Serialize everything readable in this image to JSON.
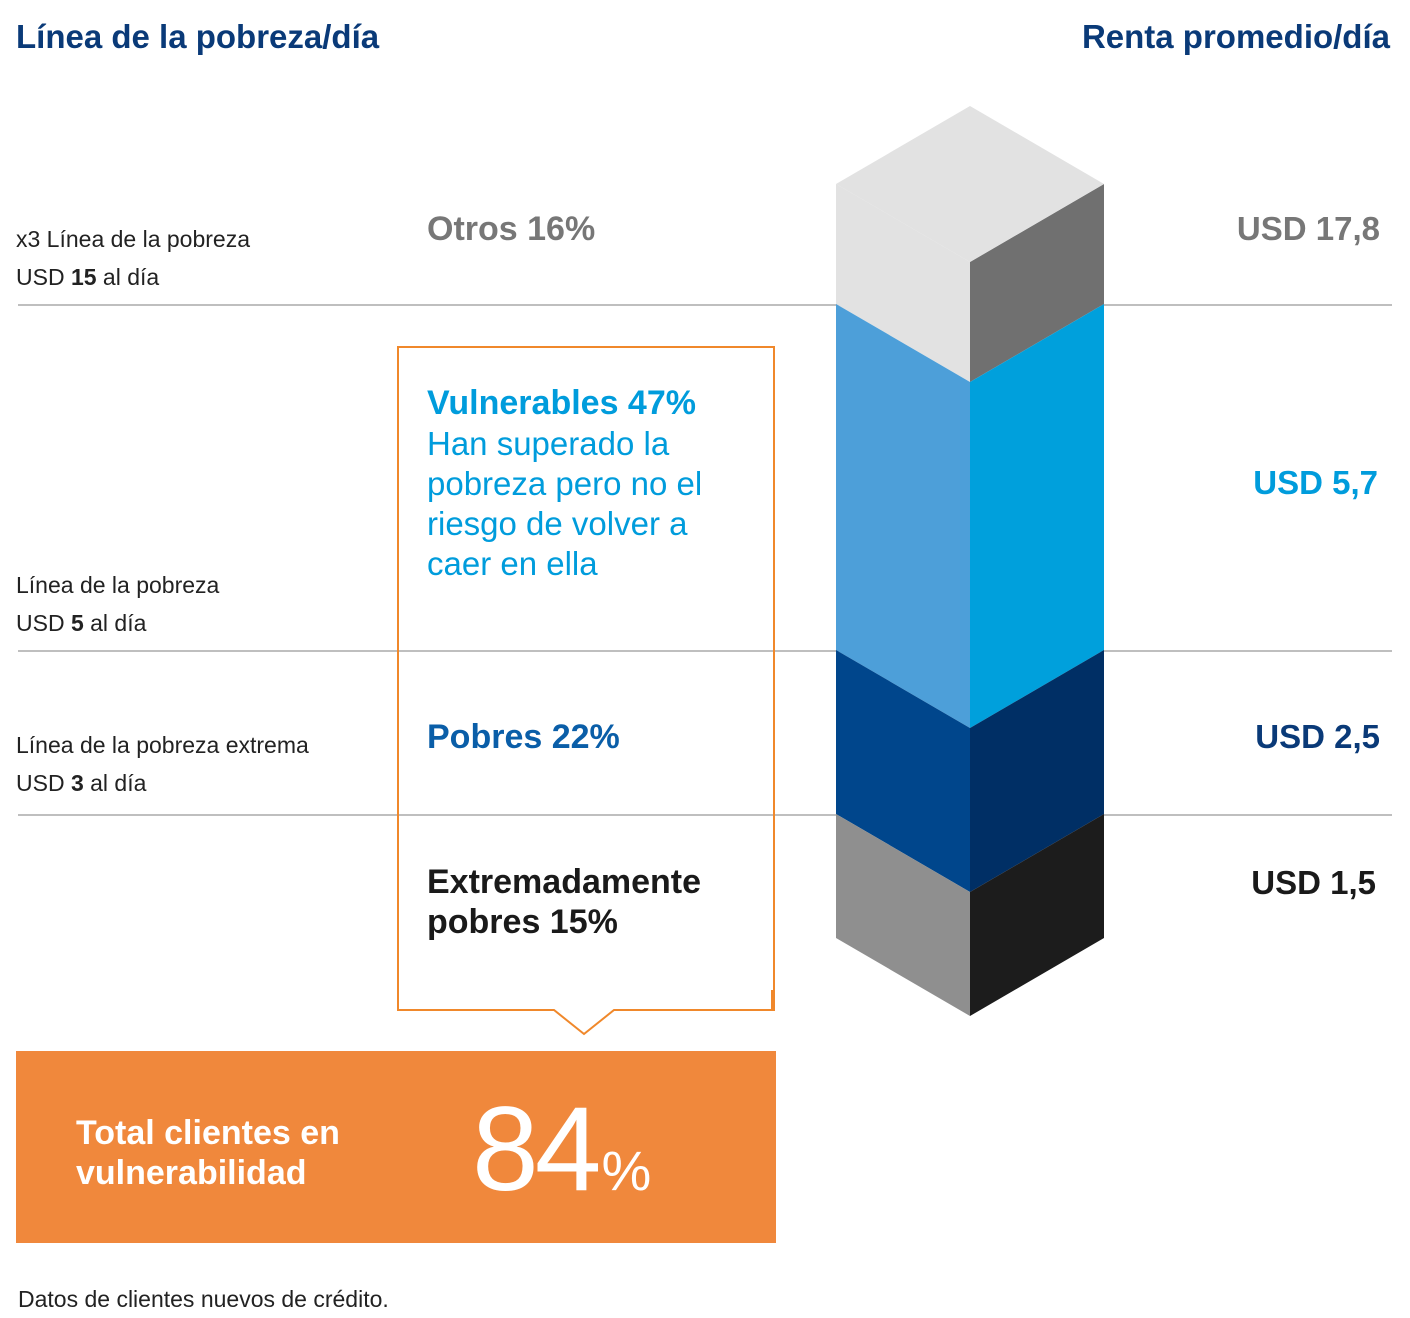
{
  "header": {
    "left_title": "Línea de la pobreza/día",
    "right_title": "Renta promedio/día"
  },
  "poverty_lines": [
    {
      "line1": "x3 Línea de la pobreza",
      "prefix": "USD ",
      "amount": "15",
      "suffix": " al día"
    },
    {
      "line1": "Línea de la pobreza",
      "prefix": "USD ",
      "amount": "5",
      "suffix": " al día"
    },
    {
      "line1": "Línea de la pobreza extrema",
      "prefix": "USD ",
      "amount": "3",
      "suffix": " al día"
    }
  ],
  "segments": [
    {
      "label": "Otros 16%",
      "color": "#777777"
    },
    {
      "label": "Vulnerables 47%",
      "description": "Han superado la pobreza pero no el riesgo de volver a caer en ella",
      "color": "#009cdc"
    },
    {
      "label": "Pobres 22%",
      "color": "#0a5ea8"
    },
    {
      "label": "Extremadamente pobres 15%",
      "color": "#1a1a1a"
    }
  ],
  "incomes": [
    {
      "value": "USD 17,8",
      "color": "#777777"
    },
    {
      "value": "USD 5,7",
      "color": "#009cdc"
    },
    {
      "value": "USD 2,5",
      "color": "#0a3a78"
    },
    {
      "value": "USD 1,5",
      "color": "#1a1a1a"
    }
  ],
  "total": {
    "label": "Total clientes en vulnerabilidad",
    "value": "84",
    "unit": "%"
  },
  "footnote": "Datos de clientes nuevos de crédito.",
  "chart_data": {
    "type": "bar",
    "categories": [
      "Otros",
      "Vulnerables",
      "Pobres",
      "Extremadamente pobres"
    ],
    "series": [
      {
        "values": [
          16,
          47,
          22,
          15
        ]
      }
    ],
    "average_income_usd_per_day": [
      17.8,
      5.7,
      2.5,
      1.5
    ],
    "poverty_lines_usd_per_day": [
      15,
      5,
      3
    ],
    "colors": {
      "otros": [
        "#e2e2e2",
        "#707070"
      ],
      "vulnerables": [
        "#4d9fd9",
        "#00a0dc"
      ],
      "pobres": [
        "#00468c",
        "#002f65"
      ],
      "extremos": [
        "#8f8f8f",
        "#1c1c1c"
      ]
    },
    "total_vulnerable_percent": 84
  }
}
